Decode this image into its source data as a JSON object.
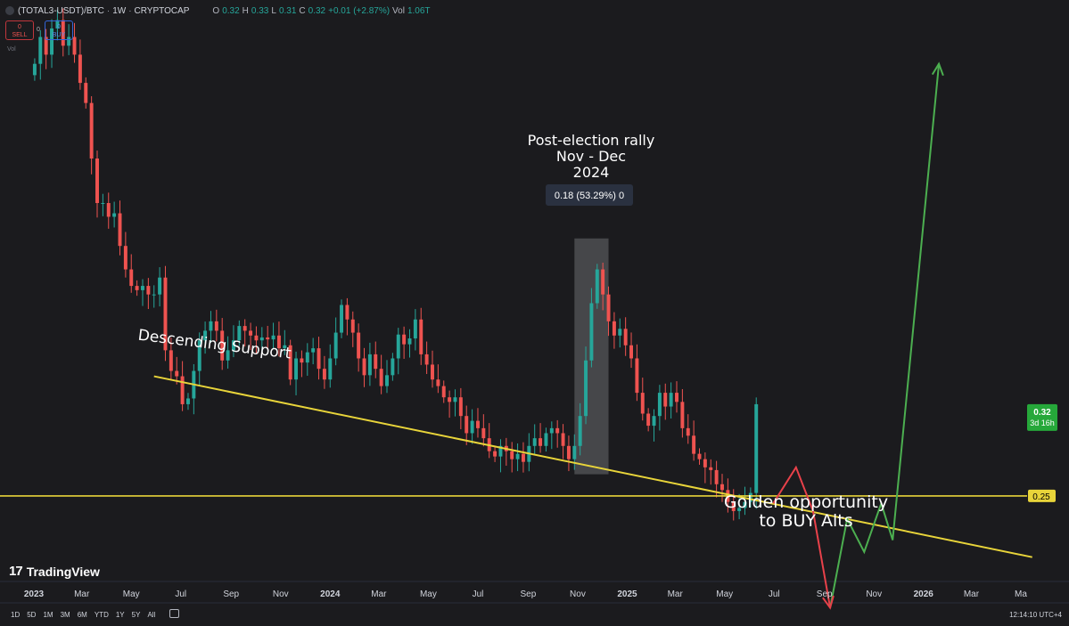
{
  "header": {
    "symbol": "(TOTAL3-USDT)/BTC",
    "interval": "1W",
    "exchange": "CRYPTOCAP",
    "ohlc": {
      "o": "0.32",
      "h": "0.33",
      "l": "0.31",
      "c": "0.32",
      "change": "+0.01 (+2.87%)",
      "vol": "1.06T"
    },
    "sell": {
      "price": "0",
      "label": "SELL"
    },
    "buy": {
      "price": "0",
      "label": "BUY"
    },
    "spread": "0",
    "vol_label": "Vol"
  },
  "colors": {
    "bg": "#1b1b1e",
    "up": "#26a69a",
    "down": "#ef5350",
    "support": "#e8d43a",
    "arrow_down": "#e8414a",
    "arrow_up": "#4caf50"
  },
  "chart_data": {
    "type": "candlestick",
    "x_ticks": [
      "2023",
      "Mar",
      "May",
      "Jul",
      "Sep",
      "Nov",
      "2024",
      "Mar",
      "May",
      "Jul",
      "Sep",
      "Nov",
      "2025",
      "Mar",
      "May",
      "Jul",
      "Sep",
      "Nov",
      "2026",
      "Mar",
      "Ma"
    ],
    "x_tick_dates": [
      "2023-01-01",
      "2023-03-01",
      "2023-05-01",
      "2023-07-01",
      "2023-09-01",
      "2023-11-01",
      "2024-01-01",
      "2024-03-01",
      "2024-05-01",
      "2024-07-01",
      "2024-09-01",
      "2024-11-01",
      "2025-01-01",
      "2025-03-01",
      "2025-05-01",
      "2025-07-01",
      "2025-09-01",
      "2025-11-01",
      "2026-01-01",
      "2026-03-01",
      "2026-05-01"
    ],
    "y_scale": "log",
    "y_range": [
      0.2,
      0.95
    ],
    "candles_start": "2023-01-02",
    "close": [
      0.8,
      0.86,
      0.82,
      0.88,
      0.9,
      0.84,
      0.86,
      0.82,
      0.76,
      0.72,
      0.62,
      0.55,
      0.55,
      0.53,
      0.535,
      0.49,
      0.46,
      0.44,
      0.435,
      0.44,
      0.43,
      0.43,
      0.45,
      0.37,
      0.35,
      0.345,
      0.32,
      0.325,
      0.35,
      0.38,
      0.39,
      0.4,
      0.39,
      0.36,
      0.37,
      0.38,
      0.395,
      0.39,
      0.385,
      0.38,
      0.383,
      0.381,
      0.385,
      0.372,
      0.375,
      0.342,
      0.362,
      0.358,
      0.368,
      0.372,
      0.352,
      0.342,
      0.362,
      0.388,
      0.418,
      0.402,
      0.388,
      0.362,
      0.346,
      0.366,
      0.352,
      0.336,
      0.346,
      0.362,
      0.386,
      0.376,
      0.382,
      0.402,
      0.366,
      0.356,
      0.342,
      0.336,
      0.326,
      0.322,
      0.326,
      0.31,
      0.296,
      0.306,
      0.3,
      0.292,
      0.282,
      0.278,
      0.286,
      0.282,
      0.276,
      0.28,
      0.274,
      0.286,
      0.292,
      0.286,
      0.296,
      0.3,
      0.296,
      0.286,
      0.276,
      0.286,
      0.31,
      0.36,
      0.42,
      0.46,
      0.43,
      0.4,
      0.385,
      0.392,
      0.375,
      0.362,
      0.33,
      0.312,
      0.302,
      0.31,
      0.33,
      0.318,
      0.33,
      0.322,
      0.3,
      0.294,
      0.28,
      0.276,
      0.27,
      0.268,
      0.258,
      0.254,
      0.246,
      0.24,
      0.242,
      0.246,
      0.252,
      0.32
    ],
    "annotations": [
      {
        "text": "Post-election rally\nNov - Dec\n2024"
      },
      {
        "text": "0.18 (53.29%) 0"
      },
      {
        "text": "Descending Support"
      },
      {
        "text": "Golden opportunity\nto BUY Alts"
      }
    ],
    "support_line": {
      "from": [
        "2023-05-29",
        0.345
      ],
      "to": [
        "2026-05-15",
        0.212
      ]
    },
    "horizontal_line": {
      "price": 0.25,
      "label": "0.25"
    },
    "last_price": {
      "value": "0.32",
      "countdown": "3d 16h"
    },
    "projection_down": [
      [
        "2025-06-30",
        0.245
      ],
      [
        "2025-07-28",
        0.27
      ],
      [
        "2025-08-18",
        0.24
      ],
      [
        "2025-09-08",
        0.185
      ]
    ],
    "projection_up": [
      [
        "2025-09-08",
        0.185
      ],
      [
        "2025-09-29",
        0.235
      ],
      [
        "2025-10-20",
        0.215
      ],
      [
        "2025-11-10",
        0.245
      ],
      [
        "2025-11-24",
        0.222
      ],
      [
        "2026-01-20",
        0.8
      ]
    ]
  },
  "footer": {
    "brand": "TradingView",
    "ranges": [
      "1D",
      "5D",
      "1M",
      "3M",
      "6M",
      "YTD",
      "1Y",
      "5Y",
      "All"
    ],
    "clock": "12:14:10 UTC+4"
  }
}
